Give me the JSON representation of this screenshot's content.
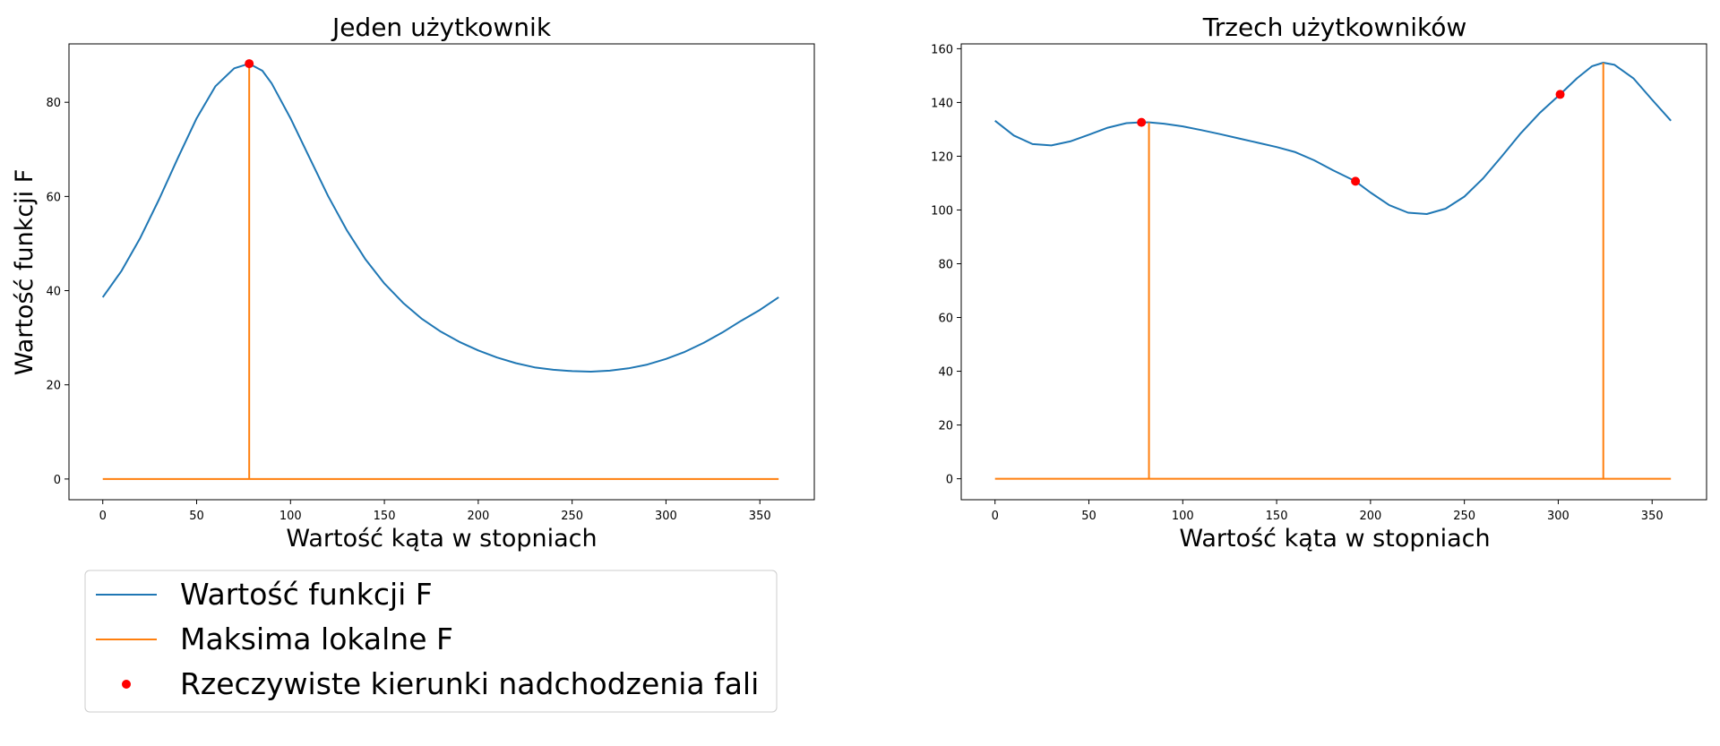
{
  "chart_data": [
    {
      "type": "line",
      "title": "Jeden użytkownik",
      "xlabel": "Wartość kąta w stopniach",
      "ylabel": "Wartość funkcji F",
      "xlim": [
        -18,
        379
      ],
      "ylim": [
        -4.4,
        92.4
      ],
      "xticks": [
        0,
        50,
        100,
        150,
        200,
        250,
        300,
        350
      ],
      "yticks": [
        0,
        20,
        40,
        60,
        80
      ],
      "grid": false,
      "series": [
        {
          "name": "Wartość funkcji F",
          "color": "#1f77b4",
          "x": [
            0,
            10,
            20,
            30,
            40,
            50,
            60,
            70,
            78,
            85,
            90,
            100,
            110,
            120,
            130,
            140,
            150,
            160,
            170,
            180,
            190,
            200,
            210,
            220,
            230,
            240,
            250,
            260,
            270,
            280,
            290,
            300,
            310,
            320,
            330,
            340,
            350,
            360
          ],
          "y": [
            38.6,
            44.2,
            51.2,
            59.4,
            68.2,
            76.6,
            83.4,
            87.2,
            88.2,
            86.7,
            84.0,
            76.6,
            68.3,
            60.1,
            52.8,
            46.6,
            41.5,
            37.4,
            34.0,
            31.3,
            29.1,
            27.3,
            25.8,
            24.6,
            23.7,
            23.2,
            22.9,
            22.8,
            23.0,
            23.5,
            24.3,
            25.5,
            27.0,
            28.9,
            31.1,
            33.6,
            35.9,
            38.6
          ]
        },
        {
          "name": "Maksima lokalne F",
          "color": "#ff7f0e",
          "kind": "stem",
          "baseline": 0,
          "xrange": [
            0,
            360
          ],
          "x": [
            78
          ],
          "y": [
            88.2
          ]
        },
        {
          "name": "Rzeczywiste kierunki nadchodzenia fali",
          "color": "#ff0000",
          "kind": "points",
          "x": [
            78
          ],
          "y": [
            88.2
          ]
        }
      ]
    },
    {
      "type": "line",
      "title": "Trzech użytkowników",
      "xlabel": "Wartość kąta w stopniach",
      "ylabel": "",
      "xlim": [
        -18,
        379
      ],
      "ylim": [
        -7.8,
        161.8
      ],
      "xticks": [
        0,
        50,
        100,
        150,
        200,
        250,
        300,
        350
      ],
      "yticks": [
        0,
        20,
        40,
        60,
        80,
        100,
        120,
        140,
        160
      ],
      "grid": false,
      "series": [
        {
          "name": "Wartość funkcji F",
          "color": "#1f77b4",
          "x": [
            0,
            10,
            20,
            30,
            40,
            50,
            60,
            70,
            78,
            82,
            90,
            100,
            110,
            120,
            130,
            140,
            150,
            160,
            170,
            180,
            192,
            200,
            210,
            220,
            230,
            240,
            250,
            260,
            270,
            280,
            290,
            301,
            310,
            318,
            324,
            330,
            340,
            350,
            360
          ],
          "y": [
            133.2,
            127.7,
            124.5,
            124.0,
            125.5,
            128.0,
            130.6,
            132.3,
            132.6,
            132.6,
            132.1,
            131.1,
            129.7,
            128.2,
            126.6,
            125.0,
            123.4,
            121.5,
            118.5,
            114.8,
            110.7,
            106.5,
            101.8,
            99.0,
            98.5,
            100.5,
            105.0,
            111.8,
            120.0,
            128.5,
            136.0,
            143.0,
            149.0,
            153.5,
            154.8,
            154.0,
            149.0,
            141.0,
            133.2
          ]
        },
        {
          "name": "Maksima lokalne F",
          "color": "#ff7f0e",
          "kind": "stem",
          "baseline": 0,
          "xrange": [
            0,
            360
          ],
          "x": [
            82,
            324
          ],
          "y": [
            132.6,
            154.8
          ]
        },
        {
          "name": "Rzeczywiste kierunki nadchodzenia fali",
          "color": "#ff0000",
          "kind": "points",
          "x": [
            78,
            192,
            301
          ],
          "y": [
            132.6,
            110.7,
            143.0
          ]
        }
      ]
    }
  ],
  "legend": {
    "placement": "below-left",
    "entries": [
      {
        "label": "Wartość funkcji F",
        "color": "#1f77b4",
        "marker": "line"
      },
      {
        "label": "Maksima lokalne F",
        "color": "#ff7f0e",
        "marker": "line"
      },
      {
        "label": "Rzeczywiste kierunki nadchodzenia fali",
        "color": "#ff0000",
        "marker": "dot"
      }
    ]
  }
}
